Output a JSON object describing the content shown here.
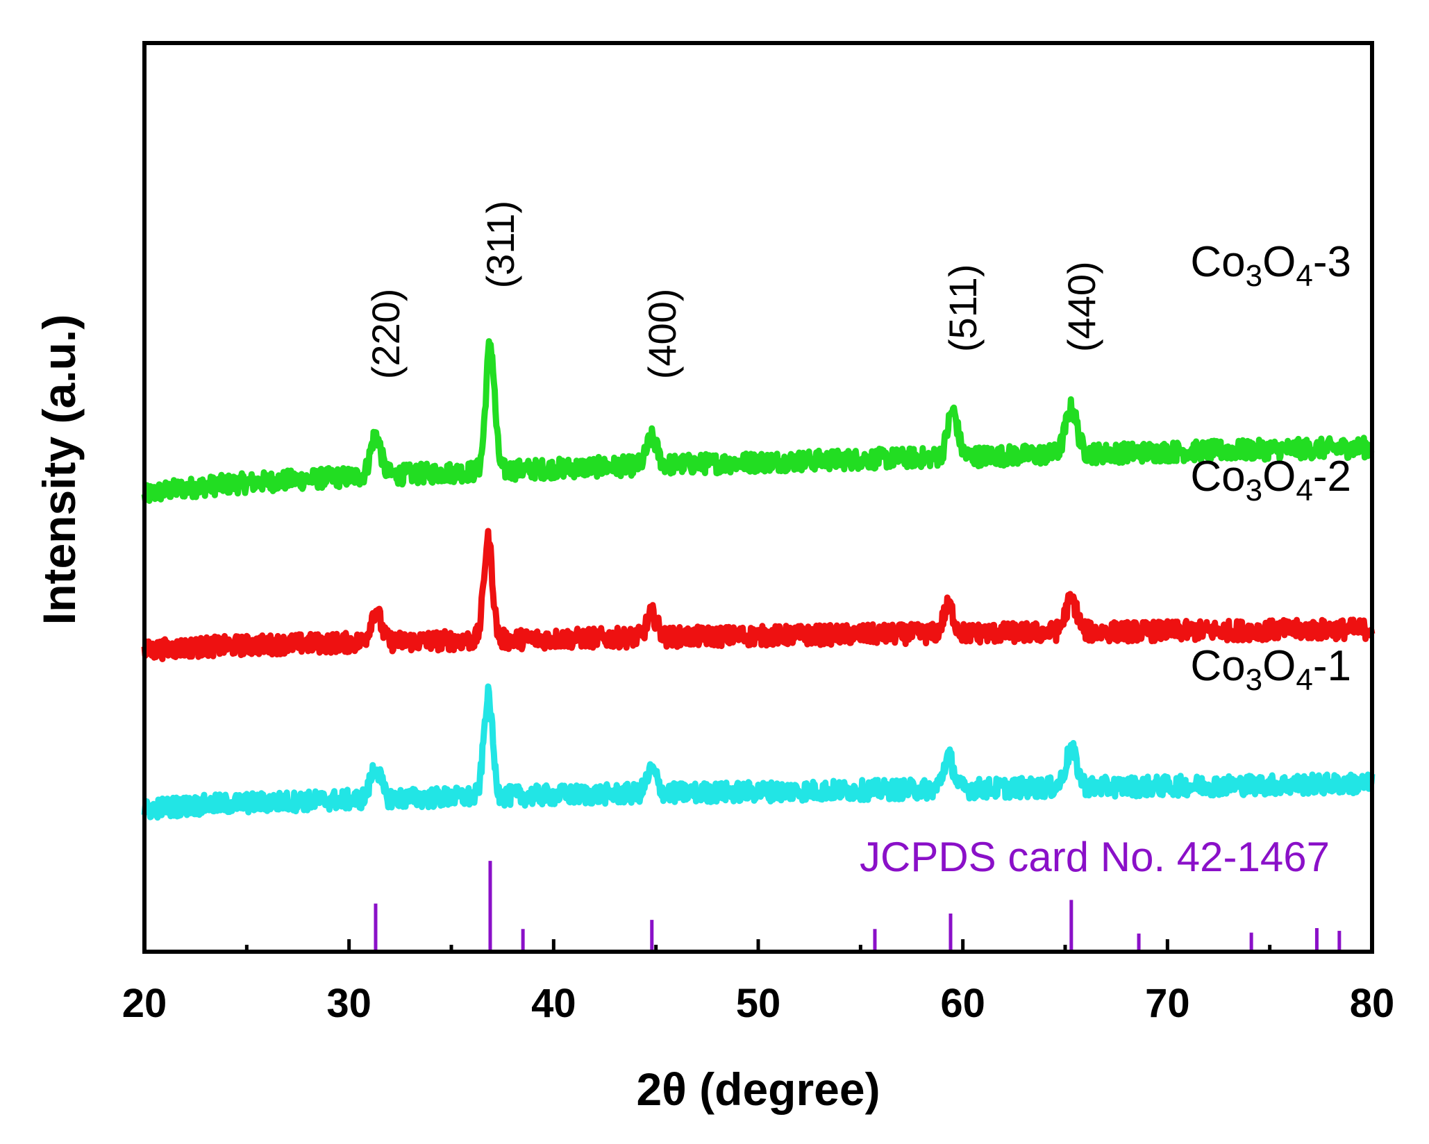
{
  "chart_data": {
    "type": "line",
    "title": "",
    "xlabel": "2θ (degree)",
    "ylabel": "Intensity (a.u.)",
    "xlim": [
      20,
      80
    ],
    "ylim": [
      0,
      100
    ],
    "x_ticks": [
      "20",
      "30",
      "40",
      "50",
      "60",
      "70",
      "80"
    ],
    "grid": false,
    "series": [
      {
        "name_main": "Co",
        "sub1": "3",
        "name_mid": "O",
        "sub2": "4",
        "suffix": "-3",
        "color": "#22dd22",
        "offset": 50,
        "baseline_start": 0,
        "baseline_end": 5.5,
        "noise": 2.2,
        "peaks": [
          {
            "x": 31.3,
            "h": 4.5,
            "w": 0.35
          },
          {
            "x": 36.9,
            "h": 14,
            "w": 0.3
          },
          {
            "x": 44.8,
            "h": 3,
            "w": 0.35
          },
          {
            "x": 59.5,
            "h": 5,
            "w": 0.35
          },
          {
            "x": 65.3,
            "h": 5,
            "w": 0.4
          }
        ]
      },
      {
        "name_main": "Co",
        "sub1": "3",
        "name_mid": "O",
        "sub2": "4",
        "suffix": "-2",
        "color": "#ee1111",
        "offset": 33,
        "baseline_start": 0,
        "baseline_end": 2.5,
        "noise": 2.2,
        "peaks": [
          {
            "x": 31.3,
            "h": 3.5,
            "w": 0.35
          },
          {
            "x": 36.8,
            "h": 11,
            "w": 0.3
          },
          {
            "x": 44.8,
            "h": 2.5,
            "w": 0.35
          },
          {
            "x": 59.3,
            "h": 3,
            "w": 0.35
          },
          {
            "x": 65.3,
            "h": 3.5,
            "w": 0.4
          }
        ]
      },
      {
        "name_main": "Co",
        "sub1": "3",
        "name_mid": "O",
        "sub2": "4",
        "suffix": "-1",
        "color": "#22e5e5",
        "offset": 15.5,
        "baseline_start": 0,
        "baseline_end": 3,
        "noise": 2.2,
        "peaks": [
          {
            "x": 31.3,
            "h": 3.5,
            "w": 0.35
          },
          {
            "x": 36.8,
            "h": 11,
            "w": 0.3
          },
          {
            "x": 44.8,
            "h": 2.5,
            "w": 0.35
          },
          {
            "x": 59.3,
            "h": 3.5,
            "w": 0.35
          },
          {
            "x": 65.3,
            "h": 4,
            "w": 0.4
          }
        ]
      }
    ],
    "annotations": [
      {
        "text": "(220)",
        "x": 31.3,
        "y": 63
      },
      {
        "text": "(311)",
        "x": 36.9,
        "y": 73
      },
      {
        "text": "(400)",
        "x": 44.8,
        "y": 63
      },
      {
        "text": "(511)",
        "x": 59.5,
        "y": 66
      },
      {
        "text": "(440)",
        "x": 65.3,
        "y": 66
      }
    ],
    "reference": {
      "label": "JCPDS card No. 42-1467",
      "color": "#8a10c8",
      "lines": [
        {
          "x": 31.3,
          "h": 5.3
        },
        {
          "x": 36.9,
          "h": 10
        },
        {
          "x": 38.5,
          "h": 2.5
        },
        {
          "x": 44.8,
          "h": 3.5
        },
        {
          "x": 55.7,
          "h": 2.5
        },
        {
          "x": 59.4,
          "h": 4.2
        },
        {
          "x": 65.3,
          "h": 5.7
        },
        {
          "x": 68.6,
          "h": 2.0
        },
        {
          "x": 74.1,
          "h": 2.1
        },
        {
          "x": 77.3,
          "h": 2.6
        },
        {
          "x": 78.4,
          "h": 2.3
        }
      ]
    }
  }
}
